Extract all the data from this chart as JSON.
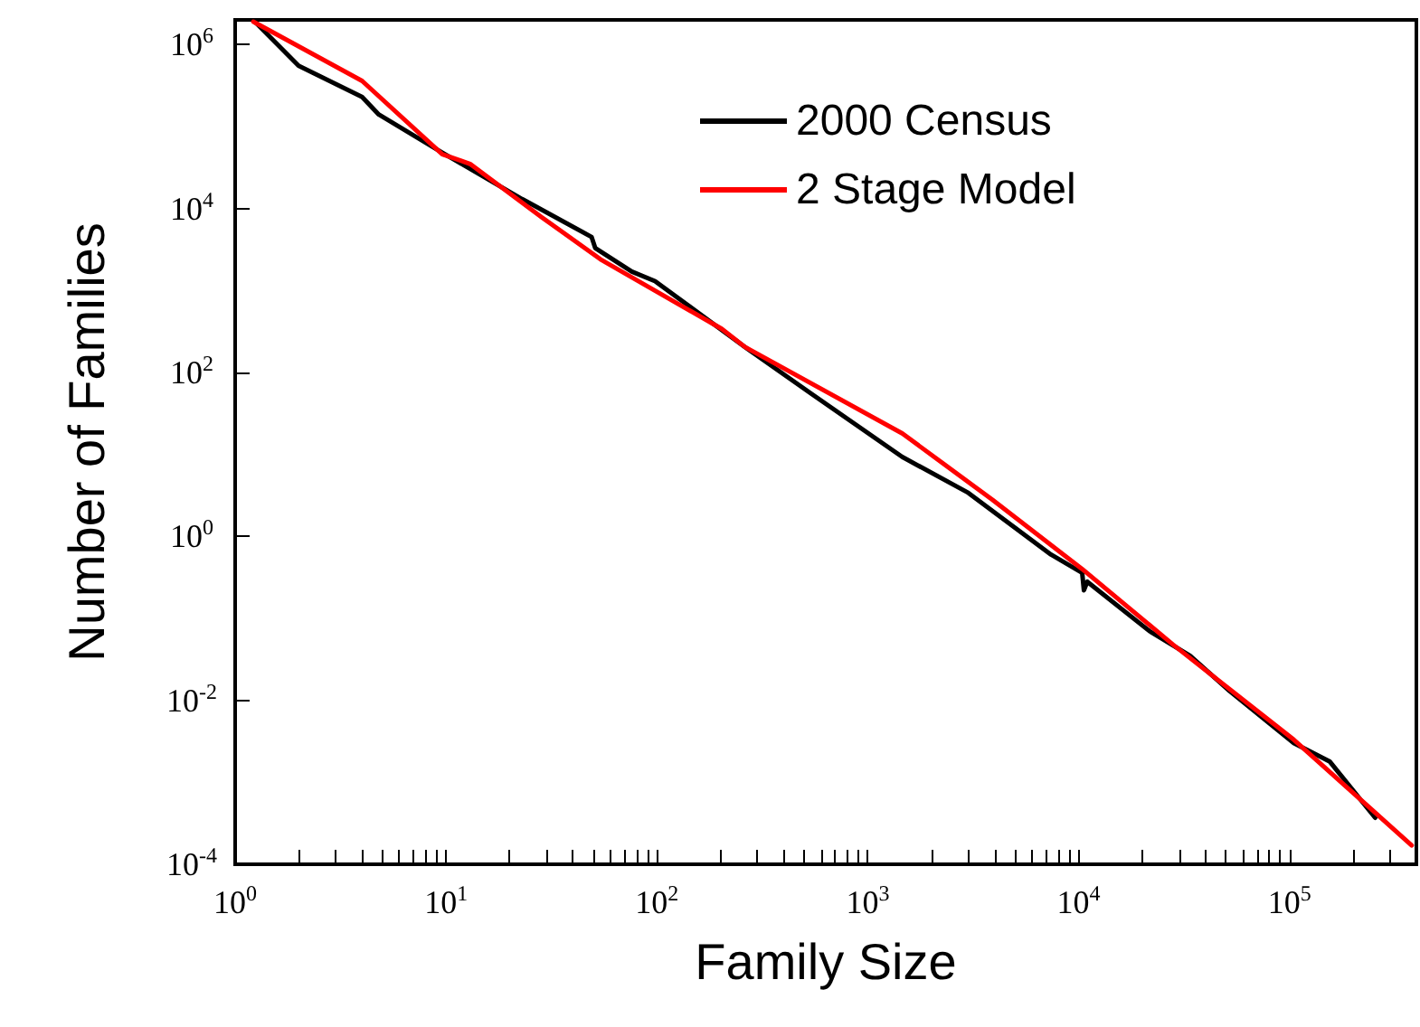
{
  "chart_data": {
    "type": "line",
    "xlabel": "Family Size",
    "ylabel": "Number of Families",
    "log": "xy",
    "legend": "top right",
    "xlim": [
      1,
      400000
    ],
    "ylim": [
      0.0001,
      2000000
    ],
    "xticks": [
      {
        "value": 1,
        "label": "10$^{0}$"
      },
      {
        "value": 2,
        "label": null
      },
      {
        "value": 3,
        "label": null
      },
      {
        "value": 4,
        "label": null
      },
      {
        "value": 5,
        "label": null
      },
      {
        "value": 6,
        "label": null
      },
      {
        "value": 7,
        "label": null
      },
      {
        "value": 8,
        "label": null
      },
      {
        "value": 9,
        "label": null
      },
      {
        "value": 10,
        "label": "10$^{1}$"
      },
      {
        "value": 20,
        "label": null
      },
      {
        "value": 30,
        "label": null
      },
      {
        "value": 40,
        "label": null
      },
      {
        "value": 50,
        "label": null
      },
      {
        "value": 60,
        "label": null
      },
      {
        "value": 70,
        "label": null
      },
      {
        "value": 80,
        "label": null
      },
      {
        "value": 90,
        "label": null
      },
      {
        "value": 100,
        "label": "10$^{2}$"
      },
      {
        "value": 200,
        "label": null
      },
      {
        "value": 300,
        "label": null
      },
      {
        "value": 400,
        "label": null
      },
      {
        "value": 500,
        "label": null
      },
      {
        "value": 600,
        "label": null
      },
      {
        "value": 700,
        "label": null
      },
      {
        "value": 800,
        "label": null
      },
      {
        "value": 900,
        "label": null
      },
      {
        "value": 1000,
        "label": "10$^{3}$"
      },
      {
        "value": 2000,
        "label": null
      },
      {
        "value": 3000,
        "label": null
      },
      {
        "value": 4000,
        "label": null
      },
      {
        "value": 5000,
        "label": null
      },
      {
        "value": 6000,
        "label": null
      },
      {
        "value": 7000,
        "label": null
      },
      {
        "value": 8000,
        "label": null
      },
      {
        "value": 9000,
        "label": null
      },
      {
        "value": 10000,
        "label": "10$^{4}$"
      },
      {
        "value": 20000,
        "label": null
      },
      {
        "value": 30000,
        "label": null
      },
      {
        "value": 40000,
        "label": null
      },
      {
        "value": 50000,
        "label": null
      },
      {
        "value": 60000,
        "label": null
      },
      {
        "value": 70000,
        "label": null
      },
      {
        "value": 80000,
        "label": null
      },
      {
        "value": 90000,
        "label": null
      },
      {
        "value": 100000,
        "label": "10$^{5}$"
      },
      {
        "value": 200000,
        "label": null
      },
      {
        "value": 300000,
        "label": null
      }
    ],
    "yticks": [
      {
        "value": 0.0001,
        "label": "10$^{-4}$"
      },
      {
        "value": 0.01,
        "label": "10$^{-2}$"
      },
      {
        "value": 1,
        "label": "10$^{0}$"
      },
      {
        "value": 100,
        "label": "10$^{2}$"
      },
      {
        "value": 10000,
        "label": "10$^{4}$"
      },
      {
        "value": 1000000,
        "label": "10$^{6}$"
      }
    ],
    "series": [
      {
        "name": "2000 Census",
        "color": "#000000",
        "x": [
          1.24,
          2,
          4,
          4.8,
          9.6,
          23,
          49,
          51,
          76,
          98,
          262,
          540,
          1460,
          3000,
          7400,
          10400,
          10600,
          11000,
          21700,
          33800,
          52000,
          105000,
          155000,
          255000
        ],
        "values": [
          1900000,
          550000,
          230000,
          140000,
          48000,
          13000,
          4500,
          3300,
          1700,
          1300,
          204,
          55,
          9.3,
          3.4,
          0.6,
          0.36,
          0.22,
          0.28,
          0.07,
          0.035,
          0.013,
          0.003,
          0.0018,
          0.00037
        ]
      },
      {
        "name": "2 Stage Model",
        "color": "#ff0000",
        "x": [
          1.22,
          4,
          9.6,
          13,
          28.5,
          54,
          203,
          262,
          1460,
          3900,
          10400,
          28000,
          105000,
          380000
        ],
        "values": [
          1900000,
          360000,
          46000,
          35000,
          7800,
          2400,
          340,
          204,
          18,
          2.8,
          0.4,
          0.048,
          0.0033,
          0.00017
        ]
      }
    ]
  }
}
